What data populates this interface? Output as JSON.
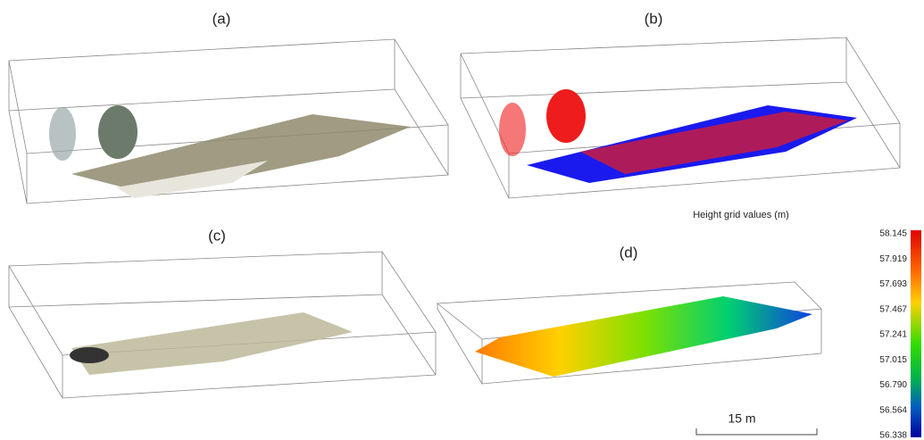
{
  "panels": [
    {
      "label": "(a)"
    },
    {
      "label": "(b)"
    },
    {
      "label": "(c)"
    },
    {
      "label": "(d)"
    }
  ],
  "colorbar": {
    "title": "Height grid values (m)",
    "ticks": [
      "58.145",
      "57.919",
      "57.693",
      "57.467",
      "57.241",
      "57.015",
      "56.790",
      "56.564",
      "56.338"
    ]
  },
  "scale_bar": {
    "label": "15 m"
  }
}
